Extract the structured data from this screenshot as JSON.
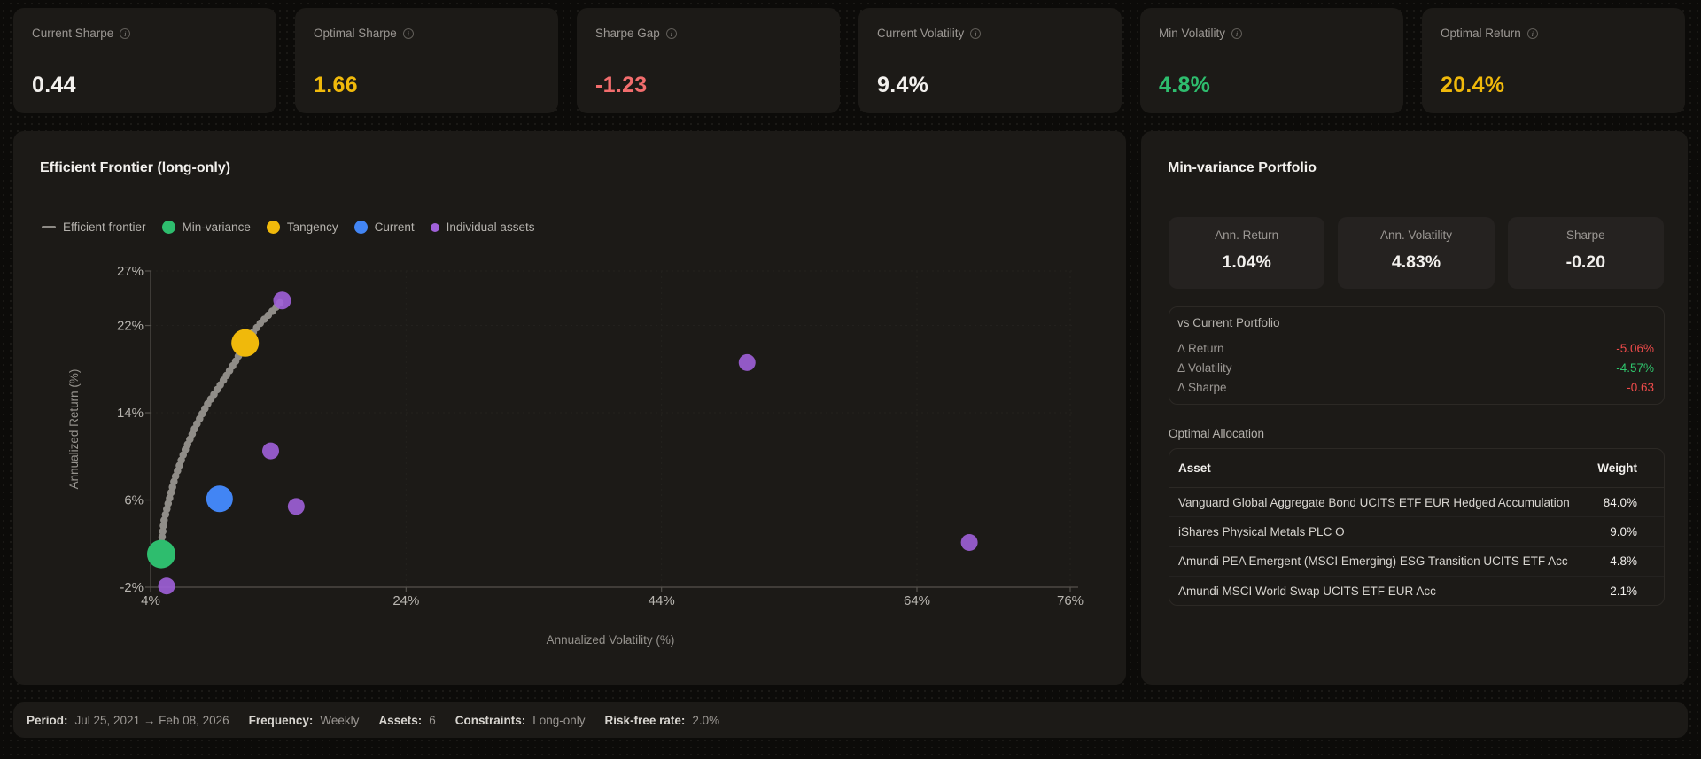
{
  "kpis": [
    {
      "label": "Current Sharpe",
      "value": "0.44",
      "color": "#f2f0ed"
    },
    {
      "label": "Optimal Sharpe",
      "value": "1.66",
      "color": "#f0b90b"
    },
    {
      "label": "Sharpe Gap",
      "value": "-1.23",
      "color": "#f26d6d"
    },
    {
      "label": "Current Volatility",
      "value": "9.4%",
      "color": "#f2f0ed"
    },
    {
      "label": "Min Volatility",
      "value": "4.8%",
      "color": "#2ebd6e"
    },
    {
      "label": "Optimal Return",
      "value": "20.4%",
      "color": "#f0b90b"
    }
  ],
  "chart": {
    "title": "Efficient Frontier (long-only)",
    "legend": [
      {
        "label": "Efficient frontier",
        "color": "#8d8a85"
      },
      {
        "label": "Min-variance",
        "color": "#2ebd6e"
      },
      {
        "label": "Tangency",
        "color": "#f0b90b"
      },
      {
        "label": "Current",
        "color": "#4285f4"
      },
      {
        "label": "Individual assets",
        "color": "#a061d9"
      }
    ]
  },
  "chart_data": {
    "type": "scatter",
    "title": "Efficient Frontier (long-only)",
    "xlabel": "Annualized Volatility (%)",
    "ylabel": "Annualized Return (%)",
    "xlim": [
      4,
      76
    ],
    "ylim": [
      -2,
      27
    ],
    "x_ticks": [
      4,
      24,
      44,
      64,
      76
    ],
    "y_ticks": [
      -2,
      6,
      14,
      22,
      27
    ],
    "grid": true,
    "frontier_line": {
      "name": "Efficient frontier",
      "color": "#97948e",
      "points": [
        [
          4.83,
          1.04
        ],
        [
          4.9,
          2.6
        ],
        [
          5.05,
          4.1
        ],
        [
          5.4,
          5.8
        ],
        [
          5.9,
          8.0
        ],
        [
          6.6,
          10.3
        ],
        [
          7.5,
          12.7
        ],
        [
          8.4,
          14.7
        ],
        [
          9.6,
          16.8
        ],
        [
          10.7,
          18.8
        ],
        [
          11.4,
          20.4
        ],
        [
          12.5,
          22.1
        ],
        [
          13.6,
          23.4
        ],
        [
          14.3,
          24.3
        ]
      ]
    },
    "points": [
      {
        "name": "Individual asset",
        "x": 5.25,
        "y": -1.9,
        "r": 9.5,
        "color": "#a061d9",
        "opacity": 0.9
      },
      {
        "name": "Individual asset",
        "x": 13.4,
        "y": 10.5,
        "r": 9.5,
        "color": "#a061d9",
        "opacity": 0.9
      },
      {
        "name": "Individual asset",
        "x": 15.4,
        "y": 5.4,
        "r": 9.5,
        "color": "#a061d9",
        "opacity": 0.9
      },
      {
        "name": "Individual asset",
        "x": 14.3,
        "y": 24.3,
        "r": 10,
        "color": "#a061d9",
        "opacity": 0.9
      },
      {
        "name": "Individual asset",
        "x": 50.7,
        "y": 18.6,
        "r": 9.5,
        "color": "#a061d9",
        "opacity": 0.9
      },
      {
        "name": "Individual asset",
        "x": 68.1,
        "y": 2.1,
        "r": 9.5,
        "color": "#a061d9",
        "opacity": 0.9
      },
      {
        "name": "Current",
        "x": 9.4,
        "y": 6.1,
        "r": 15,
        "color": "#4285f4",
        "opacity": 1
      },
      {
        "name": "Tangency",
        "x": 11.4,
        "y": 20.4,
        "r": 15.5,
        "color": "#f0b90b",
        "opacity": 1
      },
      {
        "name": "Min-variance",
        "x": 4.83,
        "y": 1.04,
        "r": 16,
        "color": "#2ebd6e",
        "opacity": 1
      }
    ]
  },
  "portfolio": {
    "title": "Min-variance Portfolio",
    "stats": [
      {
        "label": "Ann. Return",
        "value": "1.04%"
      },
      {
        "label": "Ann. Volatility",
        "value": "4.83%"
      },
      {
        "label": "Sharpe",
        "value": "-0.20"
      }
    ],
    "vs": {
      "title": "vs Current Portfolio",
      "rows": [
        {
          "label": "Δ Return",
          "value": "-5.06%",
          "color": "#f04b4b"
        },
        {
          "label": "Δ Volatility",
          "value": "-4.57%",
          "color": "#2fc46c"
        },
        {
          "label": "Δ Sharpe",
          "value": "-0.63",
          "color": "#f04b4b"
        }
      ]
    },
    "allocation": {
      "title": "Optimal Allocation",
      "columns": {
        "asset": "Asset",
        "weight": "Weight"
      },
      "rows": [
        {
          "asset": "Vanguard Global Aggregate Bond UCITS ETF EUR Hedged Accumulation",
          "weight": "84.0%"
        },
        {
          "asset": "iShares Physical Metals PLC O",
          "weight": "9.0%"
        },
        {
          "asset": "Amundi PEA Emergent (MSCI Emerging) ESG Transition UCITS ETF Acc",
          "weight": "4.8%"
        },
        {
          "asset": "Amundi MSCI World Swap UCITS ETF EUR Acc",
          "weight": "2.1%"
        }
      ]
    }
  },
  "footer": [
    {
      "label": "Period:",
      "value": "Jul 25, 2021 → Feb 08, 2026"
    },
    {
      "label": "Frequency:",
      "value": "Weekly"
    },
    {
      "label": "Assets:",
      "value": "6"
    },
    {
      "label": "Constraints:",
      "value": "Long-only"
    },
    {
      "label": "Risk-free rate:",
      "value": "2.0%"
    }
  ],
  "info_icon_char": "i"
}
